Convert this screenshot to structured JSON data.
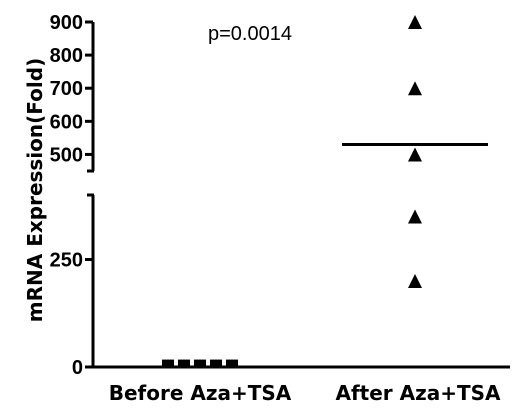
{
  "chart_data": {
    "type": "scatter",
    "title": "",
    "xlabel": "",
    "ylabel": "mRNA Expression(Fold)",
    "annotation": "p=0.0014",
    "categories": [
      "Before Aza+TSA",
      "After Aza+TSA"
    ],
    "y_axis": {
      "broken": true,
      "lower_segment": {
        "range": [
          0,
          400
        ],
        "ticks": [
          0,
          250
        ],
        "tick_labels": [
          "0",
          "250"
        ]
      },
      "upper_segment": {
        "range": [
          450,
          900
        ],
        "ticks": [
          500,
          600,
          700,
          800,
          900
        ],
        "tick_labels": [
          "500",
          "600",
          "700",
          "800",
          "900"
        ]
      }
    },
    "series": [
      {
        "category": "Before Aza+TSA",
        "marker": "square",
        "values": [
          1,
          1,
          1,
          1,
          1
        ],
        "mean": 1
      },
      {
        "category": "After Aza+TSA",
        "marker": "triangle",
        "values": [
          900,
          700,
          500,
          350,
          200
        ],
        "mean": 530
      }
    ],
    "grid": false,
    "legend": "none",
    "colors": {
      "marker": "#000000",
      "axis": "#000000"
    }
  }
}
